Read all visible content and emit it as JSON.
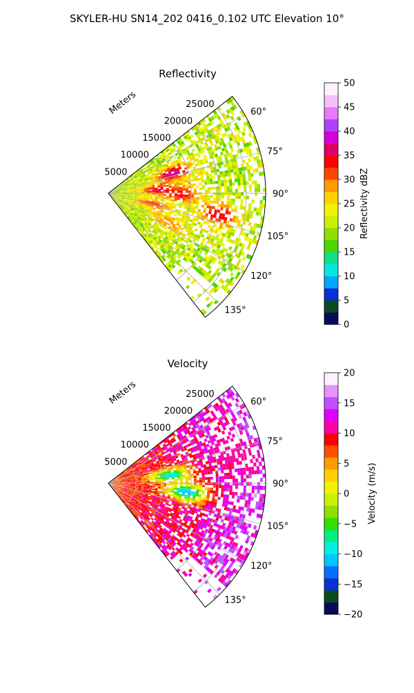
{
  "figure": {
    "title": "SKYLER-HU  SN14_202  0416_0.102 UTC Elevation 10°"
  },
  "chart_data": [
    {
      "type": "heatmap",
      "projection": "polar-sector",
      "title": "Reflectivity",
      "range_axis_label": "Meters",
      "range_ticks": [
        5000,
        10000,
        15000,
        20000,
        25000
      ],
      "range_tick_labels": [
        "5000",
        "10000",
        "15000",
        "20000",
        "25000"
      ],
      "range_max": 28500,
      "azimuth_range_deg": [
        52,
        142
      ],
      "azimuth_ticks": [
        60,
        75,
        90,
        105,
        120,
        135
      ],
      "azimuth_tick_labels": [
        "60°",
        "75°",
        "90°",
        "105°",
        "120°",
        "135°"
      ],
      "grid": true,
      "colorbar": {
        "label": "Reflectivity dBZ",
        "min": 0,
        "max": 50,
        "ticks": [
          0,
          5,
          10,
          15,
          20,
          25,
          30,
          35,
          40,
          45,
          50
        ],
        "tick_labels": [
          "0",
          "5",
          "10",
          "15",
          "20",
          "25",
          "30",
          "35",
          "40",
          "45",
          "50"
        ],
        "colors": [
          "#0a0a5a",
          "#0b4a1f",
          "#0a2fd6",
          "#00a6ff",
          "#00e8e0",
          "#12e08a",
          "#4cd600",
          "#8ee000",
          "#c8f000",
          "#f2f200",
          "#ffd000",
          "#ff9a00",
          "#ff4400",
          "#ff0000",
          "#e0006a",
          "#d400d4",
          "#b040ff",
          "#e878ff",
          "#f6c0f6",
          "#fff0ff"
        ]
      },
      "field_summary": {
        "background_value": 21,
        "cores": [
          {
            "azimuth": 72,
            "range": 12000,
            "value": 38
          },
          {
            "azimuth": 85,
            "range": 9000,
            "value": 36
          },
          {
            "azimuth": 90,
            "range": 13000,
            "value": 34
          },
          {
            "azimuth": 100,
            "range": 20000,
            "value": 35
          },
          {
            "azimuth": 103,
            "range": 8000,
            "value": 32
          },
          {
            "azimuth": 115,
            "range": 12000,
            "value": 30
          }
        ]
      }
    },
    {
      "type": "heatmap",
      "projection": "polar-sector",
      "title": "Velocity",
      "range_axis_label": "Meters",
      "range_ticks": [
        5000,
        10000,
        15000,
        20000,
        25000
      ],
      "range_tick_labels": [
        "5000",
        "10000",
        "15000",
        "20000",
        "25000"
      ],
      "range_max": 28500,
      "azimuth_range_deg": [
        52,
        142
      ],
      "azimuth_ticks": [
        60,
        75,
        90,
        105,
        120,
        135
      ],
      "azimuth_tick_labels": [
        "60°",
        "75°",
        "90°",
        "105°",
        "120°",
        "135°"
      ],
      "grid": true,
      "colorbar": {
        "label": "Velocity (m/s)",
        "min": -20,
        "max": 20,
        "ticks": [
          -20,
          -15,
          -10,
          -5,
          0,
          5,
          10,
          15,
          20
        ],
        "tick_labels": [
          "−20",
          "−15",
          "−10",
          "−5",
          "0",
          "5",
          "10",
          "15",
          "20"
        ],
        "colors": [
          "#0a0a5a",
          "#0b4a1f",
          "#0a2fd6",
          "#0070ff",
          "#00c8ff",
          "#00f0e0",
          "#00f080",
          "#30e000",
          "#8ee000",
          "#c8f000",
          "#f2f200",
          "#ffd000",
          "#ff9a00",
          "#ff5000",
          "#ff0000",
          "#ff00a0",
          "#e000ff",
          "#c050ff",
          "#e890ff",
          "#fff0ff"
        ]
      },
      "field_summary": {
        "near_range_value": 7,
        "far_range_value": 14,
        "cores": [
          {
            "azimuth": 82,
            "range": 11000,
            "value": -10
          },
          {
            "azimuth": 96,
            "range": 14000,
            "value": -12
          },
          {
            "azimuth": 72,
            "range": 22000,
            "value": 11
          },
          {
            "azimuth": 80,
            "range": 25000,
            "value": 10
          },
          {
            "azimuth": 120,
            "range": 15000,
            "value": 10
          }
        ]
      }
    }
  ]
}
